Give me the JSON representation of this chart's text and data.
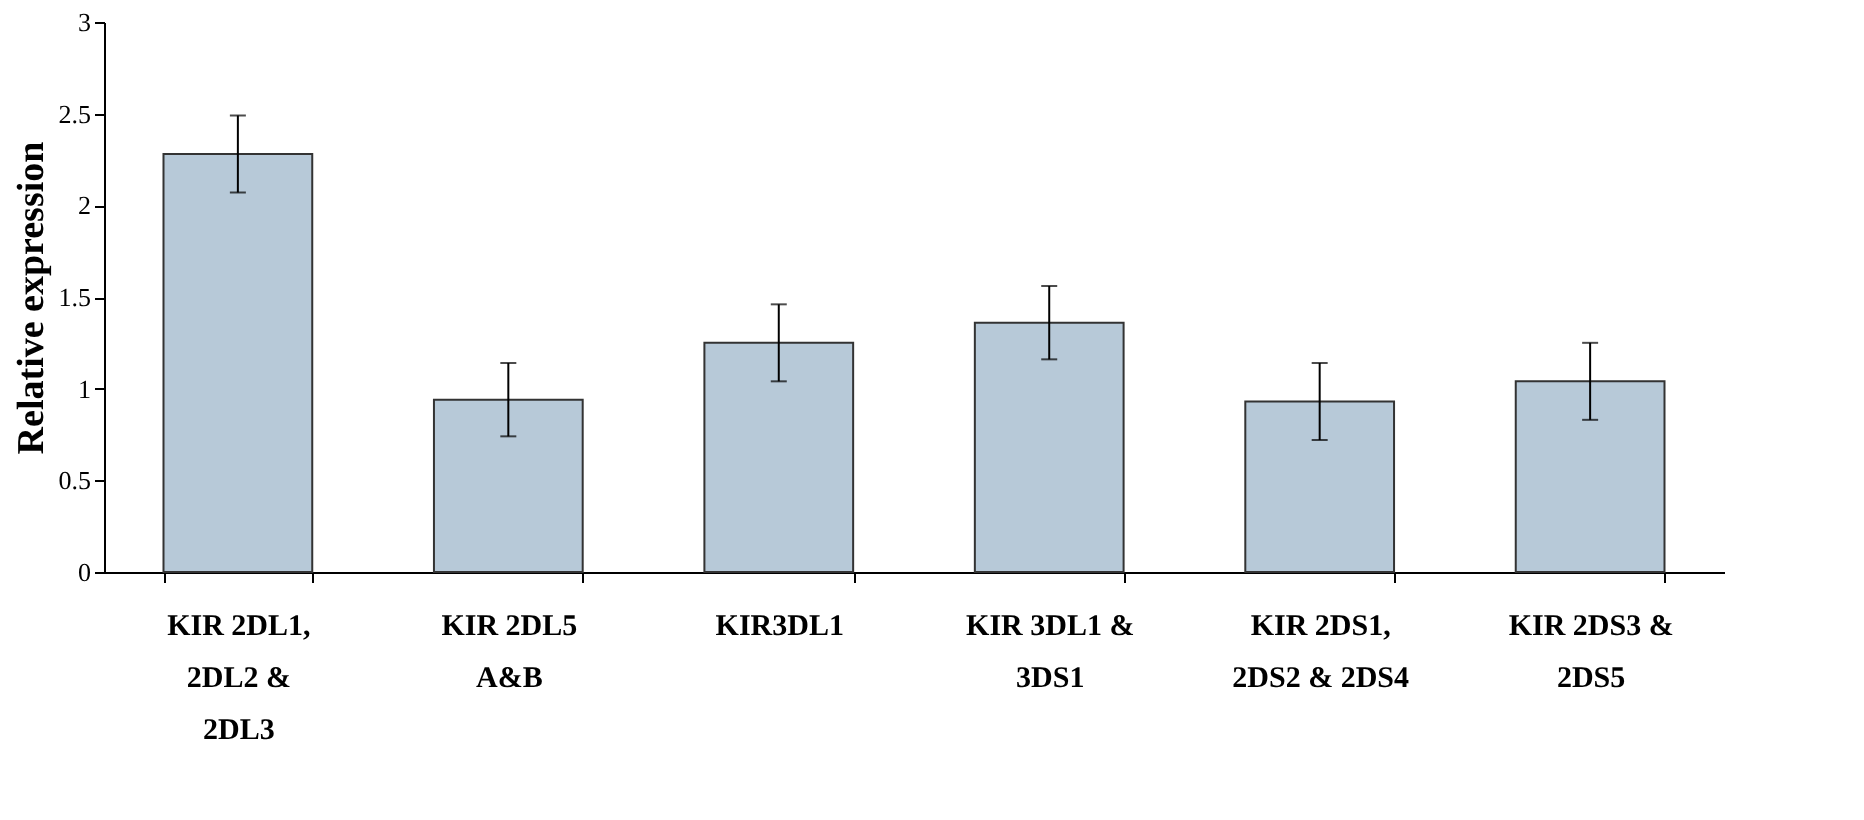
{
  "chart_data": {
    "type": "bar",
    "ylabel": "Relative expression",
    "categories": [
      "KIR 2DL1,\n2DL2 &\n2DL3",
      "KIR 2DL5\nA&B",
      "KIR3DL1",
      "KIR 3DL1 &\n3DS1",
      "KIR 2DS1,\n2DS2 & 2DS4",
      "KIR 2DS3 &\n2DS5"
    ],
    "values": [
      2.28,
      0.94,
      1.25,
      1.36,
      0.93,
      1.04
    ],
    "errors": [
      0.21,
      0.2,
      0.21,
      0.2,
      0.21,
      0.21
    ],
    "color": "#b7c9d8",
    "ylim": [
      0,
      3
    ],
    "yticks": [
      0,
      0.5,
      1,
      1.5,
      2,
      2.5,
      3
    ],
    "grid": false
  }
}
